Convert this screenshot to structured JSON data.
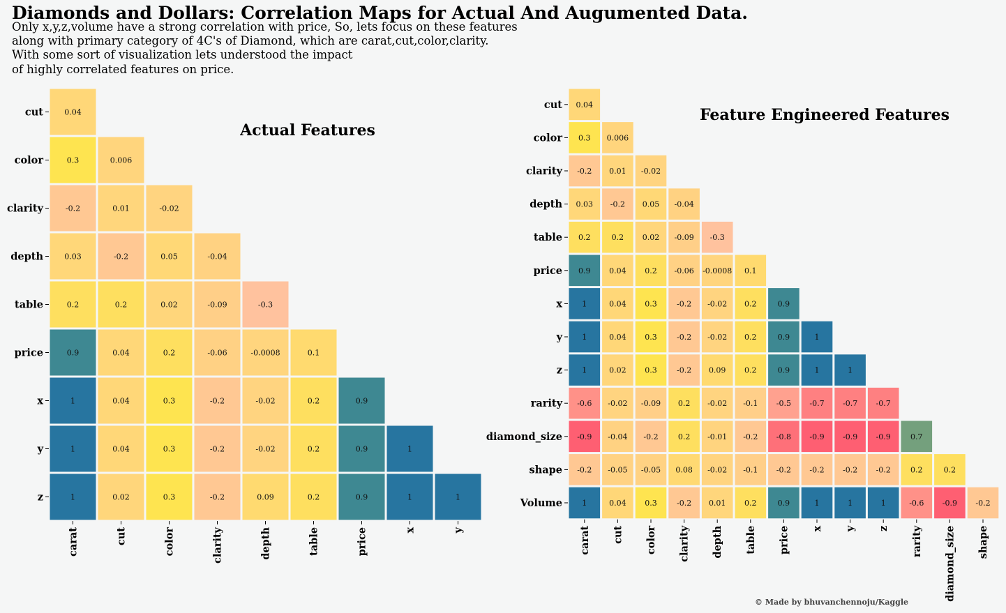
{
  "figure": {
    "title": "Diamonds and Dollars: Correlation Maps for Actual And Augumented Data.",
    "subtitle": "Only x,y,z,volume have a strong correlation with price, So, lets focus on these features\nalong with primary category of 4C's of Diamond, which are carat,cut,color,clarity.\nWith some sort of visualization lets understood the impact\nof highly correlated features on price.",
    "credit": "© Made by bhuvanchennoju/Kaggle"
  },
  "colors": {
    "background": "#f5f6f6",
    "scale": [
      "#fe5f72",
      "#ffc29e",
      "#ffd57e",
      "#fee450",
      "#74a07d",
      "#3e8892",
      "#2775a0"
    ]
  },
  "chart_data": [
    {
      "type": "heatmap",
      "title": "Actual Features",
      "x": [
        "carat",
        "cut",
        "color",
        "clarity",
        "depth",
        "table",
        "price",
        "x",
        "y"
      ],
      "y": [
        "cut",
        "color",
        "clarity",
        "depth",
        "table",
        "price",
        "x",
        "y",
        "z"
      ],
      "mask": "lower-triangle",
      "grid": false,
      "legend": "none",
      "values": [
        [
          "0.04"
        ],
        [
          "0.3",
          "0.006"
        ],
        [
          "-0.2",
          "0.01",
          "-0.02"
        ],
        [
          "0.03",
          "-0.2",
          "0.05",
          "-0.04"
        ],
        [
          "0.2",
          "0.2",
          "0.02",
          "-0.09",
          "-0.3"
        ],
        [
          "0.9",
          "0.04",
          "0.2",
          "-0.06",
          "-0.0008",
          "0.1"
        ],
        [
          "1",
          "0.04",
          "0.3",
          "-0.2",
          "-0.02",
          "0.2",
          "0.9"
        ],
        [
          "1",
          "0.04",
          "0.3",
          "-0.2",
          "-0.02",
          "0.2",
          "0.9",
          "1"
        ],
        [
          "1",
          "0.02",
          "0.3",
          "-0.2",
          "0.09",
          "0.2",
          "0.9",
          "1",
          "1"
        ]
      ]
    },
    {
      "type": "heatmap",
      "title": "Feature Engineered Features",
      "x": [
        "carat",
        "cut",
        "color",
        "clarity",
        "depth",
        "table",
        "price",
        "x",
        "y",
        "z",
        "rarity",
        "diamond_size",
        "shape"
      ],
      "y": [
        "cut",
        "color",
        "clarity",
        "depth",
        "table",
        "price",
        "x",
        "y",
        "z",
        "rarity",
        "diamond_size",
        "shape",
        "Volume"
      ],
      "mask": "lower-triangle",
      "grid": false,
      "legend": "none",
      "values": [
        [
          "0.04"
        ],
        [
          "0.3",
          "0.006"
        ],
        [
          "-0.2",
          "0.01",
          "-0.02"
        ],
        [
          "0.03",
          "-0.2",
          "0.05",
          "-0.04"
        ],
        [
          "0.2",
          "0.2",
          "0.02",
          "-0.09",
          "-0.3"
        ],
        [
          "0.9",
          "0.04",
          "0.2",
          "-0.06",
          "-0.0008",
          "0.1"
        ],
        [
          "1",
          "0.04",
          "0.3",
          "-0.2",
          "-0.02",
          "0.2",
          "0.9"
        ],
        [
          "1",
          "0.04",
          "0.3",
          "-0.2",
          "-0.02",
          "0.2",
          "0.9",
          "1"
        ],
        [
          "1",
          "0.02",
          "0.3",
          "-0.2",
          "0.09",
          "0.2",
          "0.9",
          "1",
          "1"
        ],
        [
          "-0.6",
          "-0.02",
          "-0.09",
          "0.2",
          "-0.02",
          "-0.1",
          "-0.5",
          "-0.7",
          "-0.7",
          "-0.7"
        ],
        [
          "-0.9",
          "-0.04",
          "-0.2",
          "0.2",
          "-0.01",
          "-0.2",
          "-0.8",
          "-0.9",
          "-0.9",
          "-0.9",
          "0.7"
        ],
        [
          "-0.2",
          "-0.05",
          "-0.05",
          "0.08",
          "-0.02",
          "-0.1",
          "-0.2",
          "-0.2",
          "-0.2",
          "-0.2",
          "0.2",
          "0.2"
        ],
        [
          "1",
          "0.04",
          "0.3",
          "-0.2",
          "0.01",
          "0.2",
          "0.9",
          "1",
          "1",
          "1",
          "-0.6",
          "-0.9",
          "-0.2"
        ]
      ]
    }
  ]
}
